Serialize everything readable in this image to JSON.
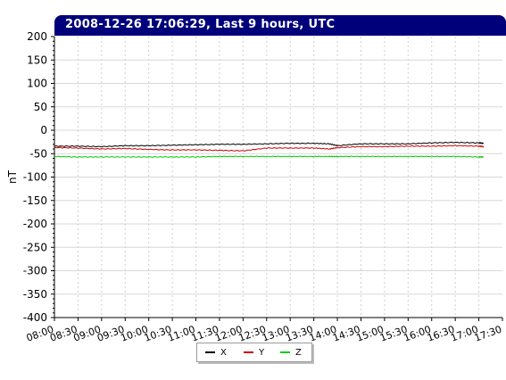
{
  "chart_data": {
    "type": "line",
    "title": "2008-12-26 17:06:29, Last 9 hours, UTC",
    "xlabel": "",
    "ylabel": "nT",
    "x_ticks": [
      "08:00",
      "08:30",
      "09:00",
      "09:30",
      "10:00",
      "10:30",
      "11:00",
      "11:30",
      "12:00",
      "12:30",
      "13:00",
      "13:30",
      "14:00",
      "14:30",
      "15:00",
      "15:30",
      "16:00",
      "16:30",
      "17:00",
      "17:30"
    ],
    "ylim": [
      -400,
      200
    ],
    "y_ticks": [
      200,
      150,
      100,
      50,
      0,
      -50,
      -100,
      -150,
      -200,
      -250,
      -300,
      -350,
      -400
    ],
    "grid": true,
    "legend_position": "bottom",
    "x": [
      "08:00",
      "08:30",
      "09:00",
      "09:30",
      "10:00",
      "10:30",
      "11:00",
      "11:30",
      "12:00",
      "12:30",
      "13:00",
      "13:30",
      "13:50",
      "14:00",
      "14:30",
      "15:00",
      "15:30",
      "16:00",
      "16:30",
      "17:00",
      "17:06"
    ],
    "series": [
      {
        "name": "X",
        "color": "#000000",
        "values": [
          -34,
          -34,
          -35,
          -33,
          -33,
          -32,
          -31,
          -30,
          -30,
          -29,
          -28,
          -28,
          -29,
          -33,
          -29,
          -29,
          -29,
          -27,
          -26,
          -27,
          -28
        ]
      },
      {
        "name": "Y",
        "color": "#cc0000",
        "values": [
          -37,
          -38,
          -40,
          -39,
          -41,
          -42,
          -42,
          -43,
          -44,
          -38,
          -38,
          -38,
          -40,
          -37,
          -35,
          -35,
          -34,
          -34,
          -33,
          -34,
          -35
        ]
      },
      {
        "name": "Z",
        "color": "#00cc00",
        "values": [
          -56,
          -57,
          -57,
          -57,
          -57,
          -57,
          -57,
          -56,
          -56,
          -56,
          -56,
          -56,
          -56,
          -56,
          -56,
          -56,
          -56,
          -56,
          -56,
          -57,
          -57
        ]
      }
    ]
  }
}
